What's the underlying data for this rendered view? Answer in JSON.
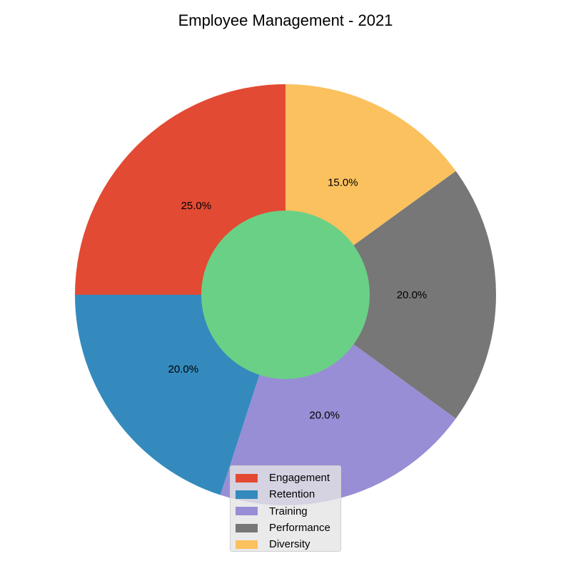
{
  "chart_data": {
    "type": "pie",
    "title": "Employee Management - 2021",
    "categories": [
      "Engagement",
      "Retention",
      "Training",
      "Performance",
      "Diversity"
    ],
    "values": [
      25,
      20,
      20,
      20,
      15
    ],
    "value_labels": [
      "25.0%",
      "20.0%",
      "20.0%",
      "20.0%",
      "15.0%"
    ],
    "colors": [
      "#E24A33",
      "#348ABD",
      "#988ED5",
      "#777777",
      "#FBC15E"
    ],
    "center_circle_color": "#6AD086",
    "start_angle_deg": 90,
    "direction": "counterclockwise",
    "donut": true,
    "legend_position": "lower center"
  }
}
